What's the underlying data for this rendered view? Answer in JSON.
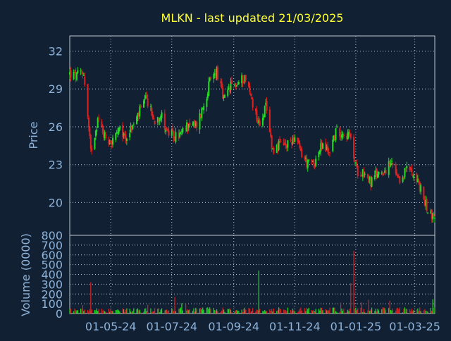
{
  "title": "MLKN - last updated 21/03/2025",
  "colors": {
    "background": "#112033",
    "title": "#ffff33",
    "axis_text": "#8fb3d9",
    "frame": "#c0c8d0",
    "grid": "#c0c8d0",
    "up": "#22dd22",
    "down": "#dd2222"
  },
  "chart_data": [
    {
      "type": "candlestick",
      "ylabel": "Price",
      "ylim": [
        17.4,
        33.2
      ],
      "yticks": [
        20,
        23,
        26,
        29,
        32
      ],
      "x_tick_labels": [
        "01-05-24",
        "01-07-24",
        "01-09-24",
        "01-11-24",
        "01-01-25",
        "01-03-25"
      ],
      "x_tick_dates": [
        "2024-05-01",
        "2024-07-01",
        "2024-09-01",
        "2024-11-01",
        "2025-01-01",
        "2025-03-01"
      ],
      "x_range": [
        "2024-03-21",
        "2025-03-21"
      ],
      "grid": true,
      "series": [
        {
          "date": "2024-03-21",
          "close": 30.2
        },
        {
          "date": "2024-03-28",
          "close": 30.0
        },
        {
          "date": "2024-04-04",
          "close": 30.3
        },
        {
          "date": "2024-04-11",
          "close": 24.0
        },
        {
          "date": "2024-04-18",
          "close": 26.6
        },
        {
          "date": "2024-04-25",
          "close": 25.3
        },
        {
          "date": "2024-05-02",
          "close": 24.8
        },
        {
          "date": "2024-05-09",
          "close": 25.6
        },
        {
          "date": "2024-05-16",
          "close": 25.2
        },
        {
          "date": "2024-05-23",
          "close": 26.0
        },
        {
          "date": "2024-05-30",
          "close": 27.2
        },
        {
          "date": "2024-06-06",
          "close": 28.2
        },
        {
          "date": "2024-06-13",
          "close": 26.5
        },
        {
          "date": "2024-06-20",
          "close": 27.0
        },
        {
          "date": "2024-06-27",
          "close": 25.5
        },
        {
          "date": "2024-07-04",
          "close": 25.2
        },
        {
          "date": "2024-07-11",
          "close": 25.4
        },
        {
          "date": "2024-07-18",
          "close": 26.3
        },
        {
          "date": "2024-07-25",
          "close": 26.0
        },
        {
          "date": "2024-08-01",
          "close": 27.5
        },
        {
          "date": "2024-08-08",
          "close": 29.5
        },
        {
          "date": "2024-08-15",
          "close": 30.5
        },
        {
          "date": "2024-08-22",
          "close": 28.0
        },
        {
          "date": "2024-08-29",
          "close": 29.2
        },
        {
          "date": "2024-09-05",
          "close": 29.4
        },
        {
          "date": "2024-09-12",
          "close": 30.0
        },
        {
          "date": "2024-09-19",
          "close": 28.2
        },
        {
          "date": "2024-09-26",
          "close": 26.2
        },
        {
          "date": "2024-10-03",
          "close": 27.5
        },
        {
          "date": "2024-10-10",
          "close": 24.2
        },
        {
          "date": "2024-10-17",
          "close": 24.6
        },
        {
          "date": "2024-10-24",
          "close": 24.4
        },
        {
          "date": "2024-10-31",
          "close": 25.2
        },
        {
          "date": "2024-11-07",
          "close": 24.0
        },
        {
          "date": "2024-11-14",
          "close": 23.0
        },
        {
          "date": "2024-11-21",
          "close": 23.2
        },
        {
          "date": "2024-11-28",
          "close": 24.5
        },
        {
          "date": "2024-12-05",
          "close": 24.0
        },
        {
          "date": "2024-12-12",
          "close": 25.6
        },
        {
          "date": "2024-12-19",
          "close": 25.6
        },
        {
          "date": "2024-12-26",
          "close": 25.2
        },
        {
          "date": "2025-01-02",
          "close": 22.5
        },
        {
          "date": "2025-01-09",
          "close": 22.5
        },
        {
          "date": "2025-01-16",
          "close": 21.6
        },
        {
          "date": "2025-01-23",
          "close": 22.3
        },
        {
          "date": "2025-01-30",
          "close": 22.6
        },
        {
          "date": "2025-02-06",
          "close": 23.0
        },
        {
          "date": "2025-02-13",
          "close": 21.5
        },
        {
          "date": "2025-02-20",
          "close": 22.6
        },
        {
          "date": "2025-02-27",
          "close": 22.5
        },
        {
          "date": "2025-03-06",
          "close": 21.2
        },
        {
          "date": "2025-03-13",
          "close": 19.6
        },
        {
          "date": "2025-03-21",
          "close": 18.7
        }
      ]
    },
    {
      "type": "bar",
      "ylabel": "Volume (0000)",
      "ylim": [
        0,
        800
      ],
      "yticks": [
        0,
        100,
        200,
        300,
        400,
        500,
        600,
        700,
        800
      ],
      "volume_spikes": [
        {
          "date": "2024-04-11",
          "value": 320
        },
        {
          "date": "2024-07-04",
          "value": 170
        },
        {
          "date": "2024-09-26",
          "value": 440
        },
        {
          "date": "2024-12-30",
          "value": 640
        },
        {
          "date": "2024-12-27",
          "value": 310
        }
      ],
      "typical_volume": 40
    }
  ]
}
